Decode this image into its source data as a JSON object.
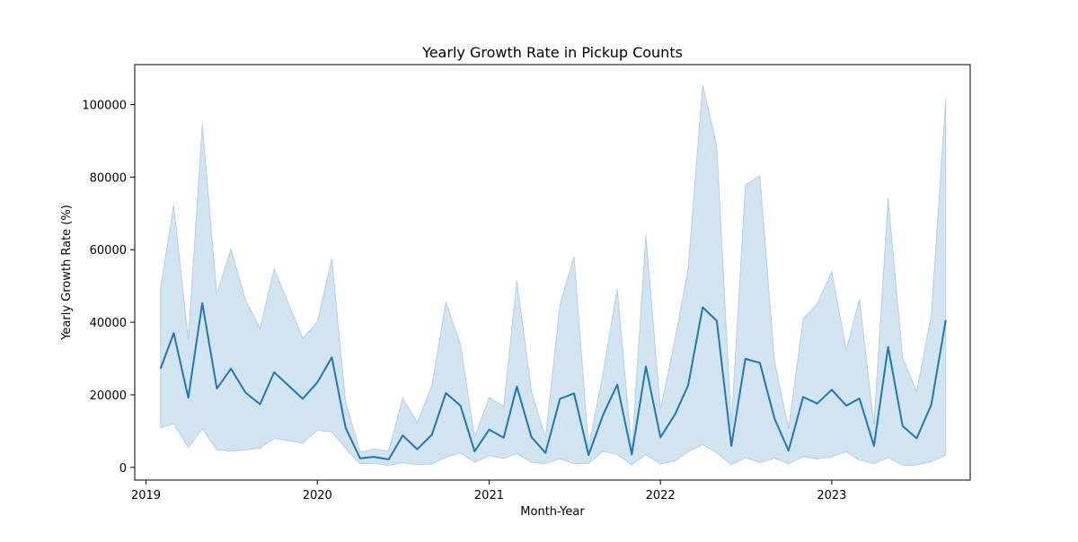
{
  "chart_data": {
    "type": "line",
    "title": "Yearly Growth Rate in Pickup Counts",
    "xlabel": "Month-Year",
    "ylabel": "Yearly Growth Rate (%)",
    "x_ticks": [
      "2019",
      "2020",
      "2021",
      "2022",
      "2023"
    ],
    "y_ticks": [
      "0",
      "20000",
      "40000",
      "60000",
      "80000",
      "100000"
    ],
    "y_tick_values": [
      0,
      20000,
      40000,
      60000,
      80000,
      100000
    ],
    "xlim": [
      "2018-12-08",
      "2023-10-23"
    ],
    "ylim": [
      -3500,
      111000
    ],
    "grid": false,
    "line_color": "#1f77b4",
    "band_color": "#1f77b4",
    "series": [
      {
        "x": [
          "2019-02",
          "2019-03",
          "2019-04",
          "2019-05",
          "2019-06",
          "2019-07",
          "2019-08",
          "2019-09",
          "2019-10",
          "2019-12",
          "2020-01",
          "2020-02",
          "2020-03",
          "2020-04",
          "2020-05",
          "2020-06",
          "2020-07",
          "2020-08",
          "2020-09",
          "2020-10",
          "2020-11",
          "2020-12",
          "2021-01",
          "2021-02",
          "2021-03",
          "2021-04",
          "2021-05",
          "2021-06",
          "2021-07",
          "2021-08",
          "2021-09",
          "2021-10",
          "2021-11",
          "2021-12",
          "2022-01",
          "2022-02",
          "2022-03",
          "2022-04",
          "2022-05",
          "2022-06",
          "2022-07",
          "2022-08",
          "2022-09",
          "2022-10",
          "2022-11",
          "2022-12",
          "2023-01",
          "2023-02",
          "2023-03",
          "2023-04",
          "2023-05",
          "2023-06",
          "2023-07",
          "2023-08",
          "2023-09"
        ],
        "y": [
          27200,
          37000,
          19200,
          45300,
          21700,
          27200,
          20600,
          17400,
          26200,
          18900,
          23400,
          30300,
          11000,
          2500,
          2900,
          2200,
          8800,
          5000,
          9000,
          20500,
          17000,
          4400,
          10400,
          8200,
          22300,
          8400,
          4000,
          18900,
          20400,
          3400,
          14500,
          22800,
          3600,
          27800,
          8300,
          14600,
          22600,
          44100,
          40400,
          5900,
          29900,
          28800,
          13500,
          4600,
          19400,
          17600,
          21400,
          17000,
          19000,
          5900,
          33200,
          11400,
          8000,
          17200,
          40600
        ],
        "lower": [
          10900,
          12000,
          5400,
          10600,
          4800,
          4500,
          4800,
          5300,
          8000,
          6700,
          10200,
          9800,
          5200,
          1000,
          1100,
          500,
          1300,
          700,
          900,
          2800,
          4000,
          1400,
          3200,
          2500,
          3800,
          1400,
          1000,
          2400,
          1000,
          1100,
          4400,
          3600,
          700,
          3500,
          900,
          1800,
          4300,
          6300,
          4000,
          700,
          2700,
          1300,
          2500,
          900,
          3000,
          2300,
          2900,
          4300,
          2000,
          1000,
          2700,
          600,
          600,
          1600,
          3300
        ],
        "upper": [
          49600,
          72400,
          35200,
          94600,
          47800,
          60200,
          46100,
          38300,
          54800,
          35600,
          40100,
          57600,
          18300,
          4200,
          5100,
          4500,
          19200,
          12400,
          22600,
          45600,
          34000,
          8300,
          19300,
          16800,
          51600,
          21200,
          8300,
          45000,
          58200,
          5600,
          26000,
          49300,
          5000,
          64200,
          16000,
          35200,
          54800,
          105500,
          88600,
          11800,
          77800,
          80400,
          29500,
          10800,
          41000,
          45100,
          54000,
          32300,
          46500,
          11900,
          74300,
          30300,
          20900,
          41900,
          101700
        ]
      }
    ]
  }
}
